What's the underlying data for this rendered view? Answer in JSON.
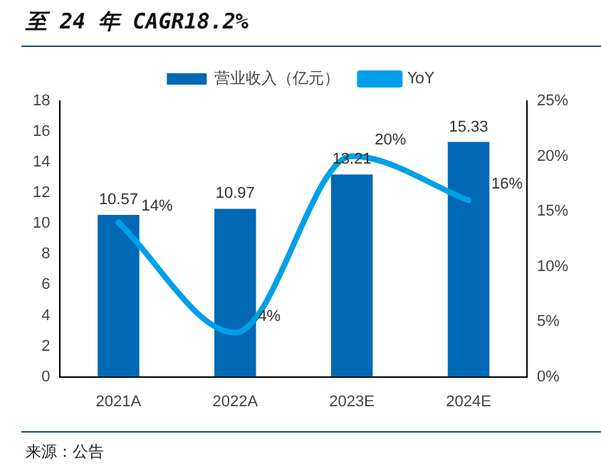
{
  "chart_data": {
    "type": "bar",
    "title": "至 24 年 CAGR18.2%",
    "categories": [
      "2021A",
      "2022A",
      "2023E",
      "2024E"
    ],
    "series": [
      {
        "name": "营业收入（亿元）",
        "color": "#0068b4",
        "values": [
          10.57,
          10.97,
          13.21,
          15.33
        ]
      },
      {
        "name": "YoY",
        "type": "line",
        "axis": "y2",
        "color": "#00a0e9",
        "values": [
          14,
          4,
          20,
          16
        ],
        "value_labels": [
          "14%",
          "4%",
          "20%",
          "16%"
        ]
      }
    ],
    "ylim": [
      0,
      18
    ],
    "yticks": [
      0,
      2,
      4,
      6,
      8,
      10,
      12,
      14,
      16,
      18
    ],
    "y2lim": [
      0,
      25
    ],
    "y2ticks": [
      {
        "value": 0,
        "label": "0%"
      },
      {
        "value": 5,
        "label": "5%"
      },
      {
        "value": 10,
        "label": "10%"
      },
      {
        "value": 15,
        "label": "15%"
      },
      {
        "value": 20,
        "label": "20%"
      },
      {
        "value": 25,
        "label": "25%"
      }
    ],
    "data_labels": true,
    "legend": "top",
    "grid": false,
    "marker": "none",
    "annotations": [
      "来源：公告"
    ]
  }
}
